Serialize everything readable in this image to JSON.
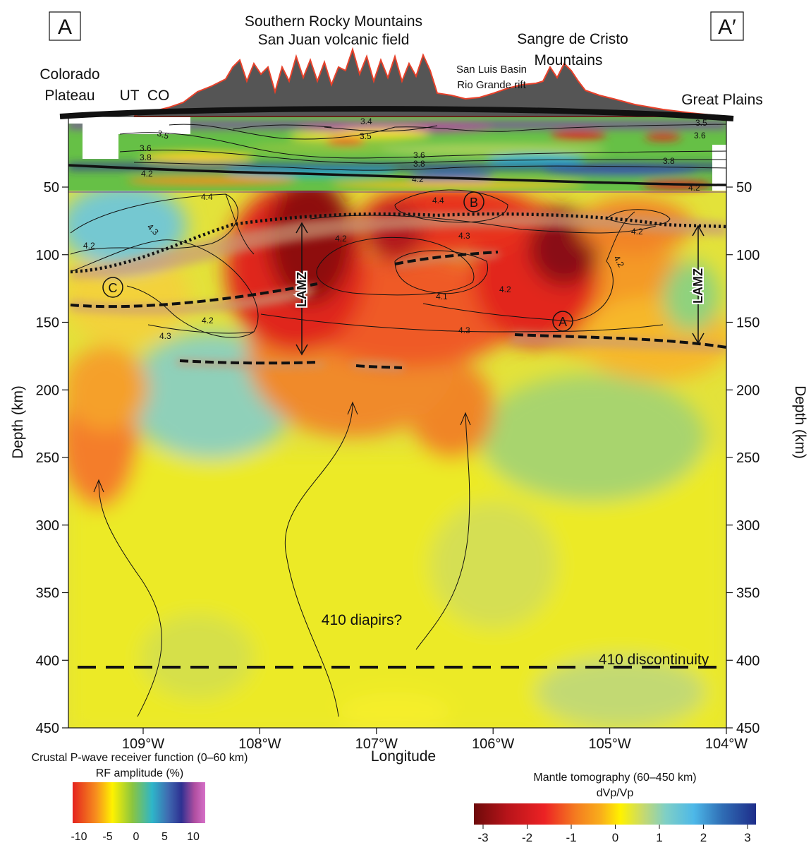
{
  "section": {
    "start_label": "A",
    "end_label": "A′"
  },
  "topography_labels": {
    "southern_rockies": "Southern Rocky Mountains",
    "san_juan": "San Juan volcanic field",
    "sangre_1": "Sangre de Cristo",
    "sangre_2": "Mountains",
    "san_luis": "San Luis Basin",
    "rio_grande": "Rio Grande rift",
    "colorado_1": "Colorado",
    "colorado_2": "Plateau",
    "ut_co": "UT  CO",
    "great_plains": "Great Plains"
  },
  "axes": {
    "y_label": "Depth (km)",
    "x_label": "Longitude",
    "y_ticks": [
      "50",
      "100",
      "150",
      "200",
      "250",
      "300",
      "350",
      "400",
      "450"
    ],
    "x_ticks": [
      "109°W",
      "108°W",
      "107°W",
      "106°W",
      "105°W",
      "104°W"
    ]
  },
  "contours": [
    "3.5",
    "3.6",
    "3.8",
    "4.2",
    "3.4",
    "3.5",
    "3.6",
    "3.8",
    "4.2",
    "3.5",
    "3.6",
    "3.8",
    "4.2",
    "4.4",
    "4.4",
    "4.3",
    "4.3",
    "4.2",
    "4.2",
    "4.2",
    "4.1",
    "4.2",
    "4.3",
    "4.2",
    "4.3",
    "4.2"
  ],
  "annotations": {
    "lamz": "LAMZ",
    "marker_a": "A",
    "marker_b": "B",
    "marker_c": "C",
    "diapirs": "410 diapirs?",
    "discontinuity": "410 discontinuity"
  },
  "legend_crust": {
    "title_1": "Crustal P-wave receiver function (0–60 km)",
    "title_2": "RF amplitude (%)",
    "ticks": [
      "-10",
      "-5",
      "0",
      "5",
      "10"
    ],
    "colors": [
      "#e4231f",
      "#f7901e",
      "#fff200",
      "#8bc53f",
      "#2eb5c9",
      "#3f6bb1",
      "#2e3192",
      "#b04ea0",
      "#d670c8"
    ]
  },
  "legend_mantle": {
    "title_1": "Mantle tomography (60–450 km)",
    "title_2": "dVp/Vp",
    "ticks": [
      "-3",
      "-2",
      "-1",
      "0",
      "1",
      "2",
      "3"
    ],
    "colors": [
      "#6d0a0a",
      "#b8141a",
      "#ec2224",
      "#f47b20",
      "#f9ae1b",
      "#fff200",
      "#c6d96f",
      "#7fcfc6",
      "#4db8e8",
      "#2f6db5",
      "#1e2d8a"
    ]
  }
}
